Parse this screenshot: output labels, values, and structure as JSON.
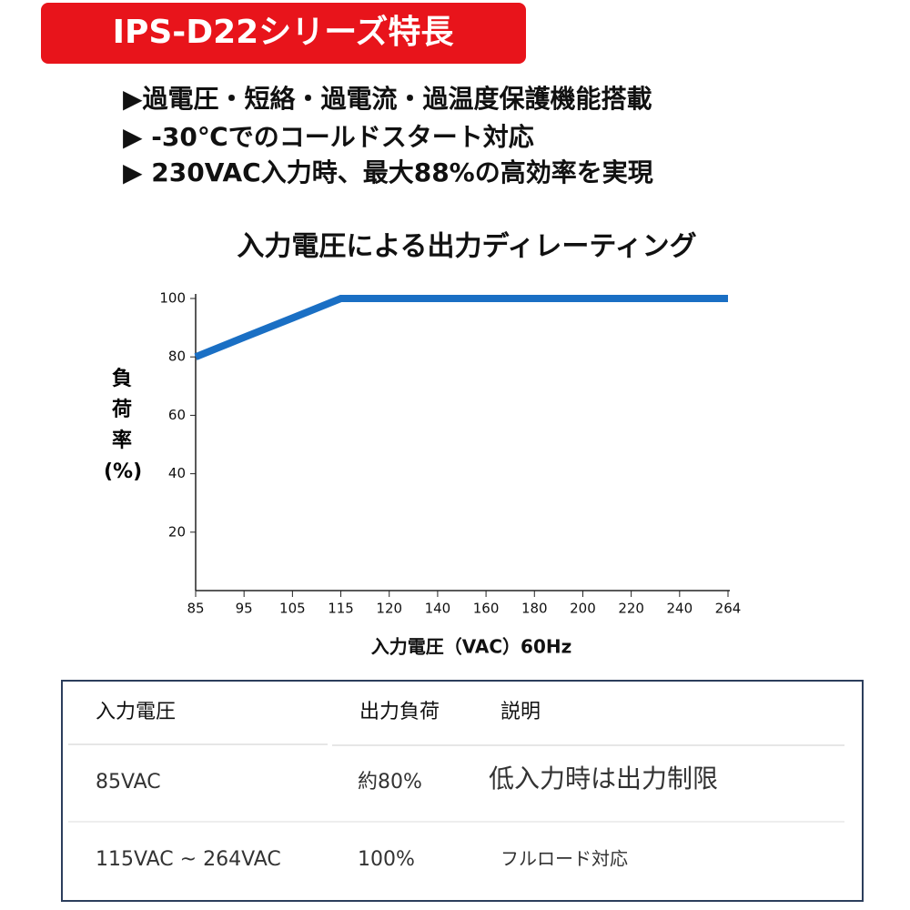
{
  "banner": {
    "title": "IPS-D22シリーズ特長"
  },
  "features": [
    "▶過電圧・短絡・過電流・過温度保護機能搭載",
    "▶ -30℃でのコールドスタート対応",
    "▶ 230VAC入力時、最大88%の高効率を実現"
  ],
  "chart_data": {
    "type": "line",
    "title": "入力電圧による出力ディレーティング",
    "x_label": "入力電圧（VAC）60Hz",
    "y_label": "負荷率(%)",
    "categories": [
      "85",
      "95",
      "105",
      "115",
      "120",
      "140",
      "160",
      "180",
      "200",
      "220",
      "240",
      "264"
    ],
    "series": [
      {
        "name": "出力負荷",
        "color": "#1a6fc4",
        "values": [
          80,
          86.7,
          93.3,
          100,
          100,
          100,
          100,
          100,
          100,
          100,
          100,
          100
        ]
      }
    ],
    "ylim": [
      0,
      100
    ],
    "yticks": [
      20,
      40,
      60,
      80,
      100
    ],
    "grid": false
  },
  "table": {
    "header": [
      "入力電圧",
      "出力負荷",
      "説明"
    ],
    "rows": [
      [
        "85VAC",
        "約80%",
        "低入力時は出力制限"
      ],
      [
        "115VAC ~ 264VAC",
        "100%",
        "フルロード対応"
      ]
    ]
  }
}
